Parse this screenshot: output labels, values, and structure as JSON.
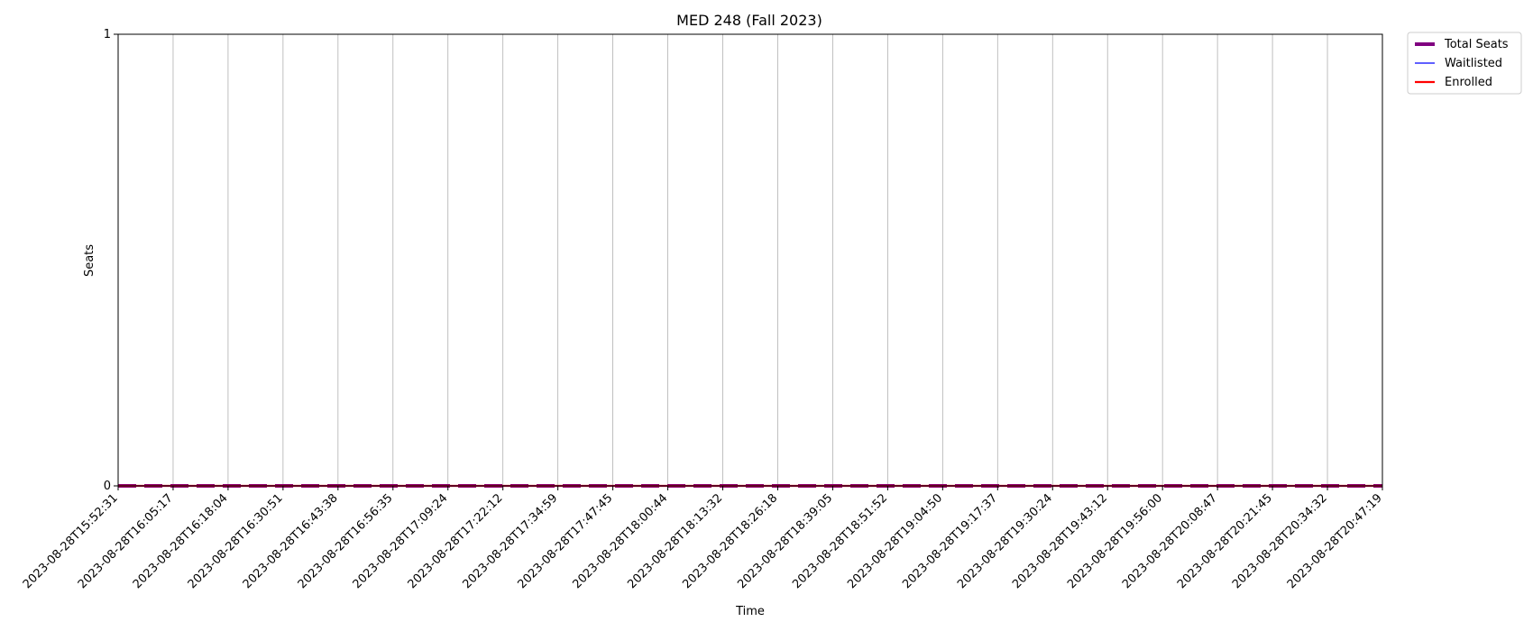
{
  "chart_data": {
    "type": "line",
    "title": "MED 248 (Fall 2023)",
    "xlabel": "Time",
    "ylabel": "Seats",
    "x": [
      "2023-08-28T15:52:31",
      "2023-08-28T16:05:17",
      "2023-08-28T16:18:04",
      "2023-08-28T16:30:51",
      "2023-08-28T16:43:38",
      "2023-08-28T16:56:35",
      "2023-08-28T17:09:24",
      "2023-08-28T17:22:12",
      "2023-08-28T17:34:59",
      "2023-08-28T17:47:45",
      "2023-08-28T18:00:44",
      "2023-08-28T18:13:32",
      "2023-08-28T18:26:18",
      "2023-08-28T18:39:05",
      "2023-08-28T18:51:52",
      "2023-08-28T19:04:50",
      "2023-08-28T19:17:37",
      "2023-08-28T19:30:24",
      "2023-08-28T19:43:12",
      "2023-08-28T19:56:00",
      "2023-08-28T20:08:47",
      "2023-08-28T20:21:45",
      "2023-08-28T20:34:32",
      "2023-08-28T20:47:19"
    ],
    "ylim": [
      0,
      1
    ],
    "yticks": [
      "0",
      "1"
    ],
    "grid": "vertical",
    "legend_position": "outside-top-right",
    "series": [
      {
        "name": "Total Seats",
        "color": "#800080",
        "style": "dashed-thick",
        "values": [
          0,
          0,
          0,
          0,
          0,
          0,
          0,
          0,
          0,
          0,
          0,
          0,
          0,
          0,
          0,
          0,
          0,
          0,
          0,
          0,
          0,
          0,
          0,
          0
        ]
      },
      {
        "name": "Waitlisted",
        "color": "#0000ff",
        "style": "solid-thin",
        "values": [
          0,
          0,
          0,
          0,
          0,
          0,
          0,
          0,
          0,
          0,
          0,
          0,
          0,
          0,
          0,
          0,
          0,
          0,
          0,
          0,
          0,
          0,
          0,
          0
        ]
      },
      {
        "name": "Enrolled",
        "color": "#ff0000",
        "style": "solid-medium",
        "values": [
          0,
          0,
          0,
          0,
          0,
          0,
          0,
          0,
          0,
          0,
          0,
          0,
          0,
          0,
          0,
          0,
          0,
          0,
          0,
          0,
          0,
          0,
          0,
          0
        ]
      }
    ]
  }
}
